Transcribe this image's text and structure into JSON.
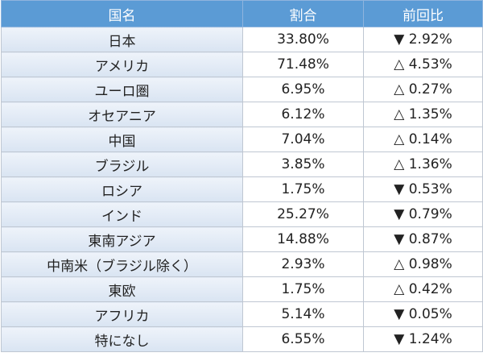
{
  "table": {
    "headers": [
      "国名",
      "割合",
      "前回比"
    ],
    "rows": [
      [
        "日本",
        "33.80%",
        "▼ 2.92%"
      ],
      [
        "アメリカ",
        "71.48%",
        "△ 4.53%"
      ],
      [
        "ユーロ圏",
        "6.95%",
        "△ 0.27%"
      ],
      [
        "オセアニア",
        "6.12%",
        "△ 1.35%"
      ],
      [
        "中国",
        "7.04%",
        "△ 0.14%"
      ],
      [
        "ブラジル",
        "3.85%",
        "△ 1.36%"
      ],
      [
        "ロシア",
        "1.75%",
        "▼ 0.53%"
      ],
      [
        "インド",
        "25.27%",
        "▼ 0.79%"
      ],
      [
        "東南アジア",
        "14.88%",
        "▼ 0.87%"
      ],
      [
        "中南米（ブラジル除く）",
        "2.93%",
        "△ 0.98%"
      ],
      [
        "東欧",
        "1.75%",
        "△ 0.42%"
      ],
      [
        "アフリカ",
        "5.14%",
        "▼ 0.05%"
      ],
      [
        "特になし",
        "6.55%",
        "▼ 1.24%"
      ]
    ]
  }
}
